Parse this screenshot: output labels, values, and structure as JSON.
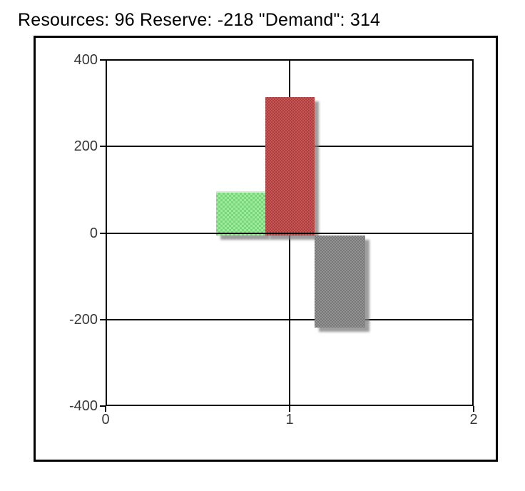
{
  "title": "Resources: 96 Reserve: -218 \"Demand\": 314",
  "chart_data": {
    "type": "bar",
    "title": "Resources: 96 Reserve: -218 \"Demand\": 314",
    "xlabel": "",
    "ylabel": "",
    "xlim": [
      0,
      2
    ],
    "ylim": [
      -400,
      400
    ],
    "x_ticks": [
      "0",
      "1",
      "2"
    ],
    "x_tick_values": [
      0,
      1,
      2
    ],
    "y_ticks": [
      "400",
      "200",
      "0",
      "-200",
      "-400"
    ],
    "y_tick_values": [
      400,
      200,
      0,
      -200,
      -400
    ],
    "grid": true,
    "legend_position": "none",
    "axis_color": "#000000",
    "tick_label_color": "#383838",
    "shadow_color": "#7d7d7d",
    "series": [
      {
        "name": "Resources",
        "value": 96,
        "x_start": 0.6,
        "x_end": 0.87,
        "color": "#8ee88e",
        "pattern": "crosshatch"
      },
      {
        "name": "Demand",
        "value": 314,
        "x_start": 0.87,
        "x_end": 1.135,
        "color": "#c34d4d",
        "pattern": "dither"
      },
      {
        "name": "Reserve",
        "value": -218,
        "x_start": 1.135,
        "x_end": 1.41,
        "color": "#858585",
        "pattern": "dots"
      }
    ]
  }
}
